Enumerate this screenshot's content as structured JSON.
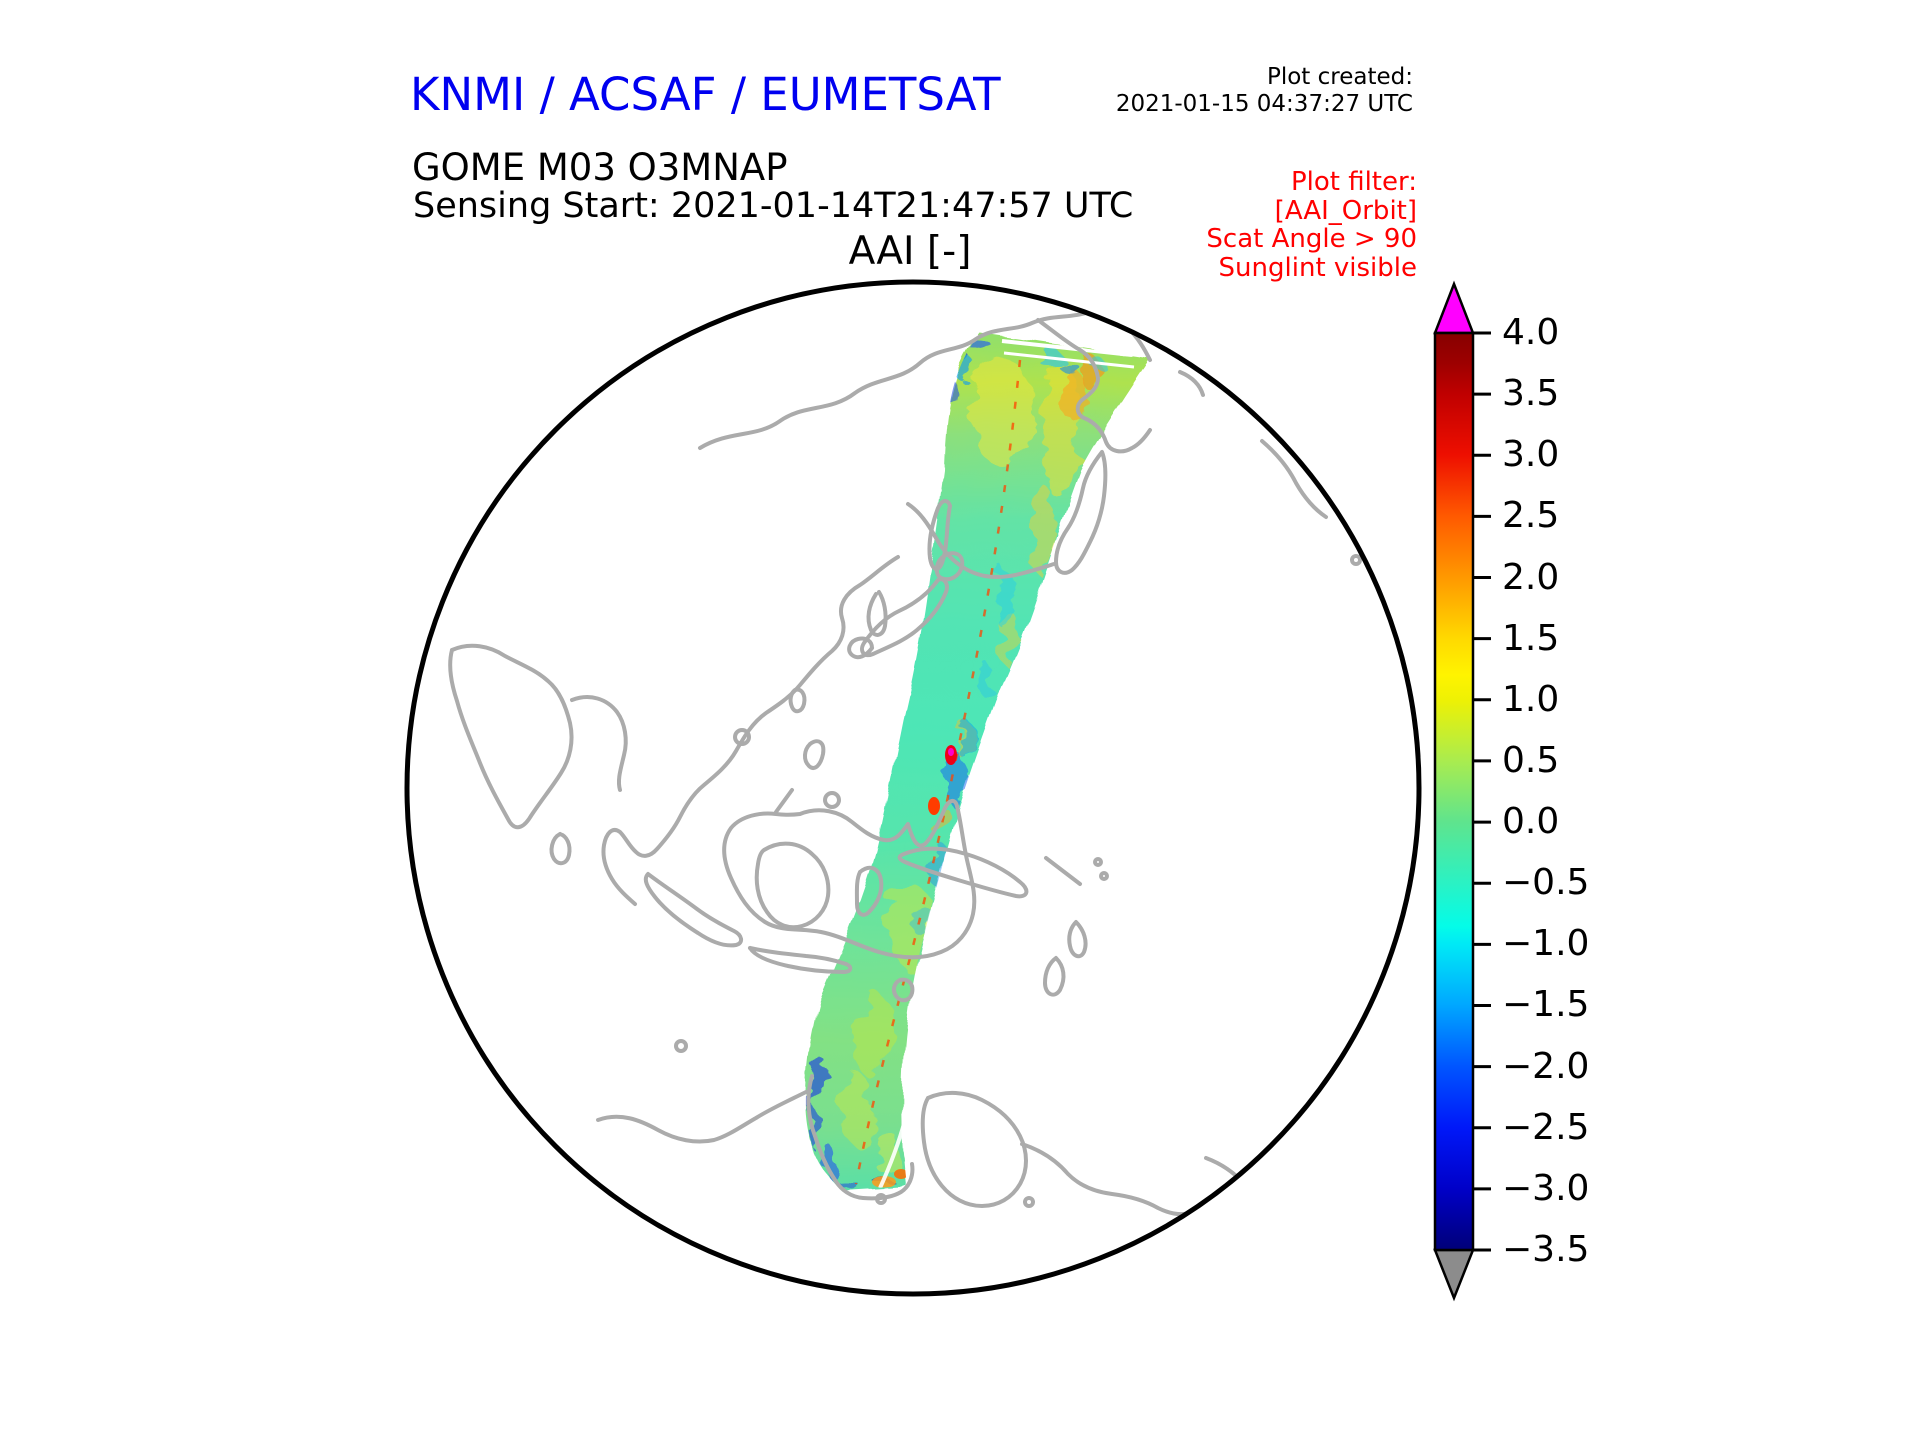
{
  "header": {
    "agency": "KNMI / ACSAF / EUMETSAT",
    "agency_color": "#0000f0",
    "product": "GOME M03 O3MNAP",
    "sensing": "Sensing Start: 2021-01-14T21:47:57 UTC",
    "created_label": "Plot created:",
    "created_value": "2021-01-15 04:37:27 UTC",
    "filter_lines": [
      "Plot filter:",
      "[AAI_Orbit]",
      "Scat Angle > 90",
      "Sunglint visible"
    ],
    "filter_color": "#ff0000"
  },
  "map_title": "AAI [-]",
  "colorbar": {
    "tick_labels": [
      "4.0",
      "3.5",
      "3.0",
      "2.5",
      "2.0",
      "1.5",
      "1.0",
      "0.5",
      "0.0",
      "−0.5",
      "−1.0",
      "−1.5",
      "−2.0",
      "−2.5",
      "−3.0",
      "−3.5"
    ],
    "over_arrow_color": "#ff00ff",
    "under_arrow_color": "#8c8c8c"
  },
  "chart_data": {
    "type": "heatmap",
    "title": "AAI [-]",
    "product": "GOME M03 O3MNAP",
    "sensing_start_utc": "2021-01-14T21:47:57",
    "plot_created_utc": "2021-01-15 04:37:27",
    "filters": [
      "AAI_Orbit",
      "Scat Angle > 90",
      "Sunglint visible"
    ],
    "projection": "orthographic globe centered on the western Pacific (~130E, near equator); coastlines in gray",
    "colorbar": {
      "label": "AAI [-]",
      "range": [
        -3.5,
        4.0
      ],
      "tick_step": 0.5,
      "ticks": [
        4.0,
        3.5,
        3.0,
        2.5,
        2.0,
        1.5,
        1.0,
        0.5,
        0.0,
        -0.5,
        -1.0,
        -1.5,
        -2.0,
        -2.5,
        -3.0,
        -3.5
      ],
      "over_color": "#ff00ff",
      "under_color": "#8c8c8c",
      "colormap_stops": [
        "#870000",
        "#c00000",
        "#ee0f00",
        "#ff5a00",
        "#ff9900",
        "#ffd900",
        "#eef104",
        "#a9ec4f",
        "#5fe48d",
        "#2af2c4",
        "#00e9f6",
        "#00a7ff",
        "#0055ff",
        "#0018f8",
        "#0000c8",
        "#000078"
      ],
      "legend_position": "right"
    },
    "swath": {
      "description": "Single GOME-2 (Metop-C) orbit swath running from the Chukchi/Bering Sea (~70N) south-southeast across the western Pacific, east of Japan and Australia, past New Zealand down to the Antarctic coast (~75S)",
      "typical_values": "mostly -1.0 to +1.5 (cyan / green / yellow mottle)",
      "notable_features": "yellow-orange patches in the North Pacific section; thin red sub-satellite dashed line along swath center; isolated red/magenta spots (AAI > 3) near 15-20S; dark-blue speckles (AAI < -2) along swath edges and near the Antarctic end; two white scan-gap lines near the swath top"
    }
  }
}
